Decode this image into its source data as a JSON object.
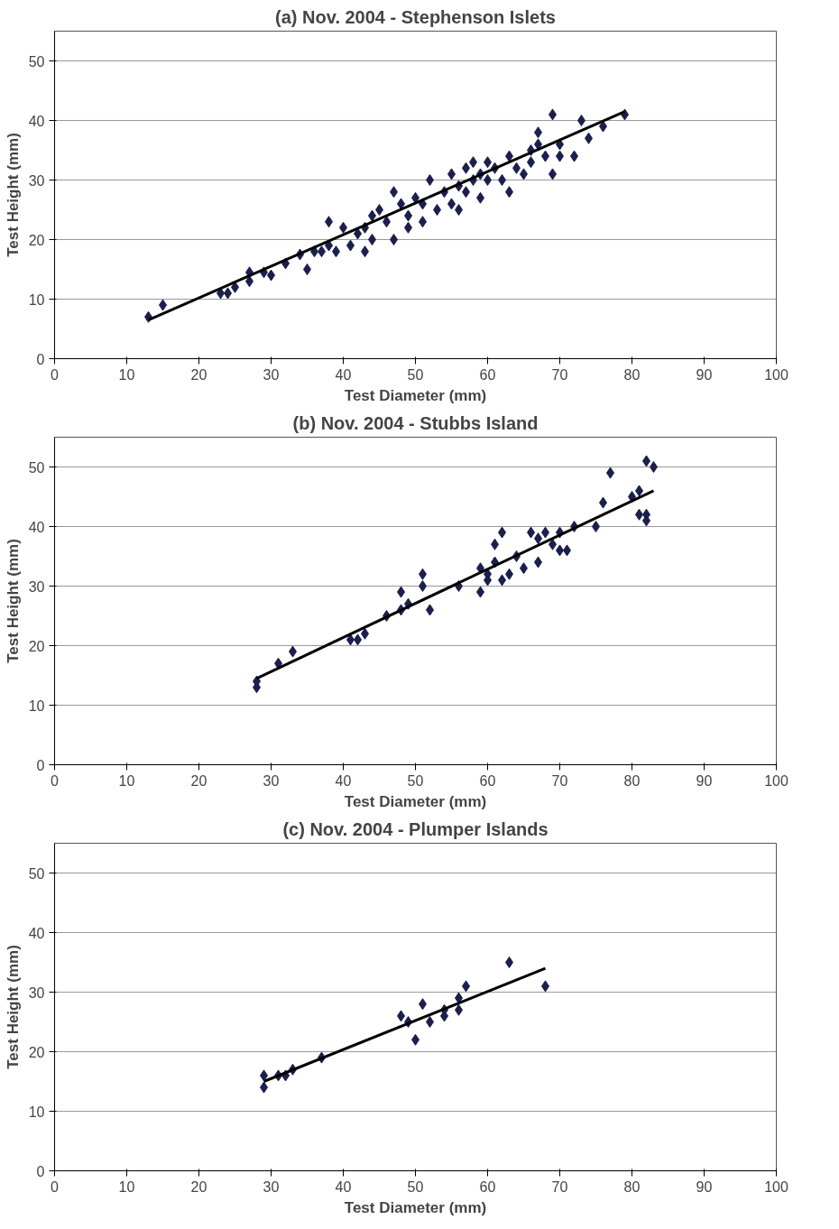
{
  "chart_data": [
    {
      "type": "scatter",
      "title": "(a) Nov. 2004 - Stephenson Islets",
      "xlabel": "Test Diameter (mm)",
      "ylabel": "Test Height (mm)",
      "xlim": [
        0,
        100
      ],
      "ylim": [
        0,
        55
      ],
      "xticks": [
        0,
        10,
        20,
        30,
        40,
        50,
        60,
        70,
        80,
        90,
        100
      ],
      "yticks": [
        0,
        10,
        20,
        30,
        40,
        50
      ],
      "grid": "y",
      "marker": "diamond",
      "series": [
        {
          "color": "#1a1f4d",
          "x": [
            13,
            15,
            23,
            24,
            25,
            27,
            27,
            29,
            30,
            32,
            34,
            35,
            36,
            37,
            38,
            38,
            39,
            40,
            41,
            42,
            43,
            43,
            44,
            44,
            45,
            46,
            47,
            47,
            48,
            49,
            49,
            50,
            51,
            51,
            52,
            53,
            54,
            55,
            55,
            56,
            56,
            57,
            57,
            58,
            58,
            59,
            59,
            60,
            60,
            61,
            62,
            63,
            63,
            64,
            65,
            66,
            66,
            67,
            67,
            68,
            69,
            69,
            70,
            70,
            72,
            73,
            74,
            76,
            79
          ],
          "values": [
            7,
            9,
            11,
            11,
            12,
            13,
            14.5,
            14.5,
            14,
            16,
            17.5,
            15,
            18,
            18,
            19,
            23,
            18,
            22,
            19,
            21,
            22,
            18,
            24,
            20,
            25,
            23,
            20,
            28,
            26,
            24,
            22,
            27,
            26,
            23,
            30,
            25,
            28,
            26,
            31,
            29,
            25,
            32,
            28,
            30,
            33,
            31,
            27,
            33,
            30,
            32,
            30,
            34,
            28,
            32,
            31,
            35,
            33,
            38,
            36,
            34,
            41,
            31,
            36,
            34,
            34,
            40,
            37,
            39,
            41
          ]
        },
        {
          "type": "line",
          "color": "#000000",
          "x": [
            13,
            79
          ],
          "values": [
            6.5,
            41.5
          ],
          "marker": "none"
        }
      ]
    },
    {
      "type": "scatter",
      "title": "(b) Nov. 2004 - Stubbs Island",
      "xlabel": "Test Diameter (mm)",
      "ylabel": "Test Height (mm)",
      "xlim": [
        0,
        100
      ],
      "ylim": [
        0,
        55
      ],
      "xticks": [
        0,
        10,
        20,
        30,
        40,
        50,
        60,
        70,
        80,
        90,
        100
      ],
      "yticks": [
        0,
        10,
        20,
        30,
        40,
        50
      ],
      "grid": "y",
      "marker": "diamond",
      "series": [
        {
          "color": "#1a1f4d",
          "x": [
            28,
            28,
            31,
            33,
            41,
            42,
            43,
            46,
            48,
            48,
            49,
            51,
            51,
            52,
            56,
            59,
            59,
            60,
            60,
            61,
            61,
            62,
            62,
            63,
            64,
            65,
            66,
            67,
            67,
            68,
            69,
            70,
            70,
            71,
            72,
            75,
            76,
            77,
            80,
            81,
            81,
            82,
            82,
            82,
            83
          ],
          "values": [
            13,
            14,
            17,
            19,
            21,
            21,
            22,
            25,
            29,
            26,
            27,
            32,
            30,
            26,
            30,
            29,
            33,
            32,
            31,
            34,
            37,
            39,
            31,
            32,
            35,
            33,
            39,
            34,
            38,
            39,
            37,
            39,
            36,
            36,
            40,
            40,
            44,
            49,
            45,
            46,
            42,
            51,
            42,
            41,
            50
          ]
        },
        {
          "type": "line",
          "color": "#000000",
          "x": [
            28,
            83
          ],
          "values": [
            14.5,
            46
          ],
          "marker": "none"
        }
      ]
    },
    {
      "type": "scatter",
      "title": "(c) Nov. 2004 - Plumper Islands",
      "xlabel": "Test Diameter (mm)",
      "ylabel": "Test Height (mm)",
      "xlim": [
        0,
        100
      ],
      "ylim": [
        0,
        55
      ],
      "xticks": [
        0,
        10,
        20,
        30,
        40,
        50,
        60,
        70,
        80,
        90,
        100
      ],
      "yticks": [
        0,
        10,
        20,
        30,
        40,
        50
      ],
      "grid": "y",
      "marker": "diamond",
      "series": [
        {
          "color": "#1a1f4d",
          "x": [
            29,
            29,
            31,
            32,
            33,
            37,
            48,
            49,
            50,
            51,
            52,
            54,
            54,
            56,
            56,
            57,
            63,
            68
          ],
          "values": [
            14,
            16,
            16,
            16,
            17,
            19,
            26,
            25,
            22,
            28,
            25,
            26,
            27,
            27,
            29,
            31,
            35,
            31
          ]
        },
        {
          "type": "line",
          "color": "#000000",
          "x": [
            29,
            68
          ],
          "values": [
            15,
            34
          ],
          "marker": "none"
        }
      ]
    }
  ]
}
